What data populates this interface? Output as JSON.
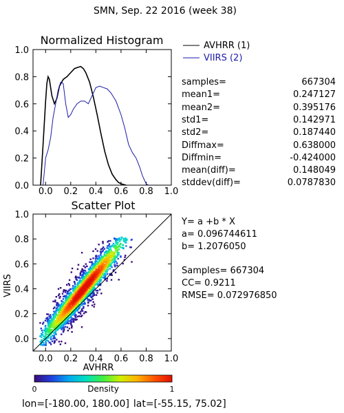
{
  "header": {
    "title": "SMN,  Sep. 22 2016 (week 38)",
    "footer_lon_label": "lon=",
    "footer_lon": "[-180.00, 180.00]",
    "footer_lat_label": "lat=",
    "footer_lat": "[-55.15, 75.02]"
  },
  "histogram": {
    "title": "Normalized Histogram",
    "legend": [
      {
        "label": "AVHRR (1)",
        "color": "#000000"
      },
      {
        "label": "VIIRS (2)",
        "color": "#1a1aa8"
      }
    ]
  },
  "stats": [
    {
      "key": "samples=",
      "value": "667304"
    },
    {
      "key": "mean1=",
      "value": "0.247127"
    },
    {
      "key": "mean2=",
      "value": "0.395176"
    },
    {
      "key": "std1=",
      "value": "0.142971"
    },
    {
      "key": "std2=",
      "value": "0.187440"
    },
    {
      "key": "Diffmax=",
      "value": "0.638000"
    },
    {
      "key": "Diffmin=",
      "value": "-0.424000"
    },
    {
      "key": "mean(diff)=",
      "value": "0.148049"
    },
    {
      "key": "stddev(diff)=",
      "value": "0.0787830"
    }
  ],
  "scatter": {
    "title": "Scatter Plot",
    "xlabel": "AVHRR",
    "ylabel": "VIIRS",
    "fit_eq": "Y= a +b * X",
    "a_label": "a= 0.096744611",
    "b_label": "b= 1.2076050",
    "samples_label": "Samples= 667304",
    "cc_label": "CC=  0.9211",
    "rmse_label": "RMSE= 0.072976850"
  },
  "colorbar": {
    "label": "Density",
    "min_label": "0",
    "max_label": "1",
    "colors": [
      "#3b0a78",
      "#2040e0",
      "#00a8f0",
      "#00e0c0",
      "#40f040",
      "#d0f000",
      "#ffb000",
      "#ff5000",
      "#e01000"
    ]
  },
  "chart_data": [
    {
      "type": "line",
      "title": "Normalized Histogram",
      "xlim": [
        -0.1,
        1.0
      ],
      "ylim": [
        0.0,
        1.0
      ],
      "xticks": [
        "0.0",
        "0.2",
        "0.4",
        "0.6",
        "0.8",
        "1.0"
      ],
      "yticks": [
        "0.0",
        "0.2",
        "0.4",
        "0.6",
        "0.8",
        "1.0"
      ],
      "series": [
        {
          "name": "AVHRR (1)",
          "color": "#000000",
          "x": [
            -0.04,
            -0.02,
            0.0,
            0.01,
            0.02,
            0.03,
            0.05,
            0.07,
            0.09,
            0.11,
            0.14,
            0.17,
            0.2,
            0.23,
            0.26,
            0.28,
            0.3,
            0.32,
            0.35,
            0.38,
            0.41,
            0.44,
            0.47,
            0.5,
            0.53,
            0.56,
            0.58,
            0.6,
            0.62,
            0.64
          ],
          "y": [
            0.0,
            0.3,
            0.62,
            0.75,
            0.8,
            0.78,
            0.66,
            0.6,
            0.64,
            0.73,
            0.78,
            0.8,
            0.83,
            0.86,
            0.87,
            0.875,
            0.86,
            0.83,
            0.76,
            0.65,
            0.52,
            0.38,
            0.25,
            0.15,
            0.08,
            0.04,
            0.02,
            0.01,
            0.005,
            0.0
          ]
        },
        {
          "name": "VIIRS (2)",
          "color": "#1a1aa8",
          "x": [
            -0.02,
            0.0,
            0.02,
            0.04,
            0.06,
            0.08,
            0.1,
            0.12,
            0.14,
            0.16,
            0.18,
            0.2,
            0.22,
            0.25,
            0.28,
            0.31,
            0.34,
            0.37,
            0.4,
            0.43,
            0.46,
            0.49,
            0.52,
            0.56,
            0.6,
            0.63,
            0.66,
            0.69,
            0.72,
            0.75,
            0.77,
            0.79,
            0.8,
            0.82
          ],
          "y": [
            0.0,
            0.2,
            0.26,
            0.35,
            0.5,
            0.6,
            0.7,
            0.76,
            0.75,
            0.6,
            0.5,
            0.52,
            0.56,
            0.6,
            0.62,
            0.62,
            0.6,
            0.66,
            0.72,
            0.73,
            0.72,
            0.71,
            0.68,
            0.62,
            0.52,
            0.42,
            0.3,
            0.24,
            0.2,
            0.13,
            0.07,
            0.03,
            0.01,
            0.0
          ]
        }
      ]
    },
    {
      "type": "scatter",
      "title": "Scatter Plot",
      "xlabel": "AVHRR",
      "ylabel": "VIIRS",
      "xlim": [
        -0.1,
        1.0
      ],
      "ylim": [
        -0.1,
        1.0
      ],
      "xticks": [
        "0.0",
        "0.2",
        "0.4",
        "0.6",
        "0.8",
        "1.0"
      ],
      "yticks": [
        "0.0",
        "0.2",
        "0.4",
        "0.6",
        "0.8",
        "1.0"
      ],
      "fit": {
        "a": 0.096744611,
        "b": 1.207605
      },
      "samples": 667304,
      "x_range": [
        -0.05,
        0.68
      ],
      "y_range": [
        -0.05,
        0.82
      ]
    }
  ]
}
